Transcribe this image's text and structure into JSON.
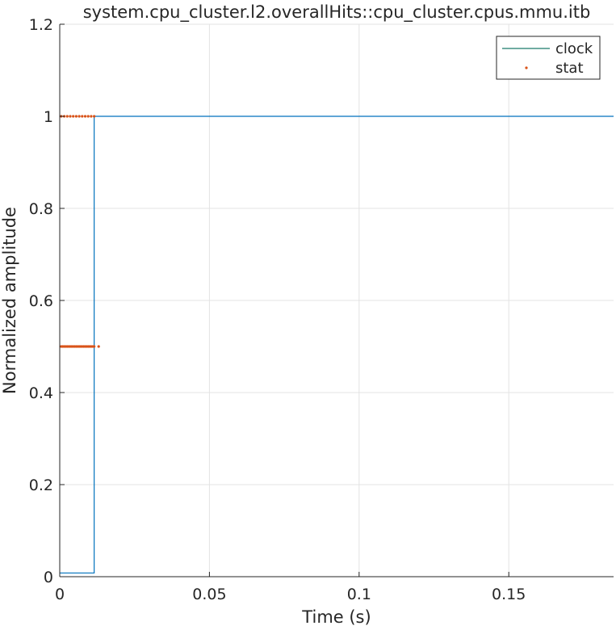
{
  "chart_data": {
    "type": "line",
    "title": "system.cpu_cluster.l2.overallHits::cpu_cluster.cpus.mmu.itb",
    "xlabel": "Time (s)",
    "ylabel": "Normalized amplitude",
    "xlim": [
      0,
      0.185
    ],
    "ylim": [
      0,
      1.2
    ],
    "xticks": [
      0,
      0.05,
      0.1,
      0.15
    ],
    "xtick_labels": [
      "0",
      "0.05",
      "0.1",
      "0.15"
    ],
    "yticks": [
      0,
      0.2,
      0.4,
      0.6,
      0.8,
      1.0,
      1.2
    ],
    "ytick_labels": [
      "0",
      "0.2",
      "0.4",
      "0.6",
      "0.8",
      "1",
      "1.2"
    ],
    "grid": true,
    "legend_position": "top-right",
    "series": [
      {
        "name": "clock",
        "kind": "line",
        "color": "#0072BD",
        "legend_color": "#1a7a6a",
        "x": [
          0,
          0.0115,
          0.0115,
          0.185
        ],
        "y": [
          0.008,
          0.008,
          1.0,
          1.0
        ]
      },
      {
        "name": "stat",
        "kind": "points",
        "color": "#D95319",
        "x": [
          0.0005,
          0.0015,
          0.0025,
          0.0035,
          0.0045,
          0.0055,
          0.0065,
          0.0075,
          0.0085,
          0.0095,
          0.0105,
          0.0115,
          0.0005,
          0.001,
          0.0015,
          0.002,
          0.0025,
          0.003,
          0.0035,
          0.004,
          0.0045,
          0.005,
          0.0055,
          0.006,
          0.0065,
          0.007,
          0.0075,
          0.008,
          0.0085,
          0.009,
          0.0095,
          0.01,
          0.0105,
          0.011,
          0.0115,
          0.013
        ],
        "y": [
          1.0,
          1.0,
          1.0,
          1.0,
          1.0,
          1.0,
          1.0,
          1.0,
          1.0,
          1.0,
          1.0,
          1.0,
          0.5,
          0.5,
          0.5,
          0.5,
          0.5,
          0.5,
          0.5,
          0.5,
          0.5,
          0.5,
          0.5,
          0.5,
          0.5,
          0.5,
          0.5,
          0.5,
          0.5,
          0.5,
          0.5,
          0.5,
          0.5,
          0.5,
          0.5,
          0.5
        ]
      }
    ]
  }
}
